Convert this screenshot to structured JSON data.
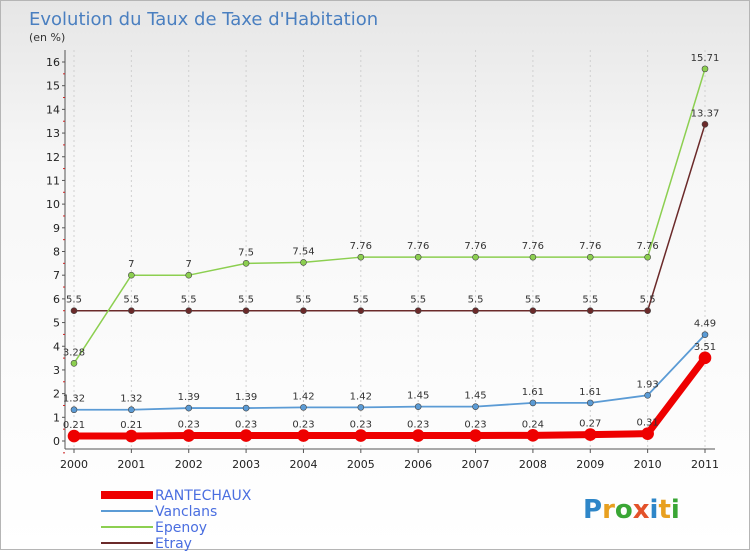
{
  "chart_data": {
    "type": "line",
    "title": "Evolution du Taux de Taxe d'Habitation",
    "unit_label": "(en %)",
    "xlabel": "",
    "ylabel": "",
    "ylim": [
      0,
      16
    ],
    "y_ticks": [
      "0",
      "1",
      "2",
      "3",
      "4",
      "5",
      "6",
      "7",
      "8",
      "9",
      "10",
      "11",
      "12",
      "13",
      "14",
      "15",
      "16"
    ],
    "categories": [
      "2000",
      "2001",
      "2002",
      "2003",
      "2004",
      "2005",
      "2006",
      "2007",
      "2008",
      "2009",
      "2010",
      "2011"
    ],
    "series": [
      {
        "name": "RANTECHAUX",
        "color": "#ee0000",
        "values": [
          0.21,
          0.21,
          0.23,
          0.23,
          0.23,
          0.23,
          0.23,
          0.23,
          0.24,
          0.27,
          0.31,
          3.51
        ],
        "labels": [
          "0.21",
          "0.21",
          "0.23",
          "0.23",
          "0.23",
          "0.23",
          "0.23",
          "0.23",
          "0.24",
          "0.27",
          "0.31",
          "3.51"
        ]
      },
      {
        "name": "Vanclans",
        "color": "#5b9bd5",
        "values": [
          1.32,
          1.32,
          1.39,
          1.39,
          1.42,
          1.42,
          1.45,
          1.45,
          1.61,
          1.61,
          1.93,
          4.49
        ],
        "labels": [
          "1.32",
          "1.32",
          "1.39",
          "1.39",
          "1.42",
          "1.42",
          "1.45",
          "1.45",
          "1.61",
          "1.61",
          "1.93",
          "4.49"
        ]
      },
      {
        "name": "Epenoy",
        "color": "#8ccf50",
        "values": [
          3.28,
          7,
          7,
          7.5,
          7.54,
          7.76,
          7.76,
          7.76,
          7.76,
          7.76,
          7.76,
          15.71
        ],
        "labels": [
          "3.28",
          "7",
          "7",
          "7.5",
          "7.54",
          "7.76",
          "7.76",
          "7.76",
          "7.76",
          "7.76",
          "7.76",
          "15.71"
        ]
      },
      {
        "name": "Etray",
        "color": "#6b2a2a",
        "values": [
          5.5,
          5.5,
          5.5,
          5.5,
          5.5,
          5.5,
          5.5,
          5.5,
          5.5,
          5.5,
          5.5,
          13.37
        ],
        "labels": [
          "5.5",
          "5.5",
          "5.5",
          "5.5",
          "5.5",
          "5.5",
          "5.5",
          "5.5",
          "5.5",
          "5.5",
          "5.5",
          "13.37"
        ]
      }
    ],
    "legend_position": "bottom-left"
  },
  "logo": {
    "text": "Proxiti"
  }
}
